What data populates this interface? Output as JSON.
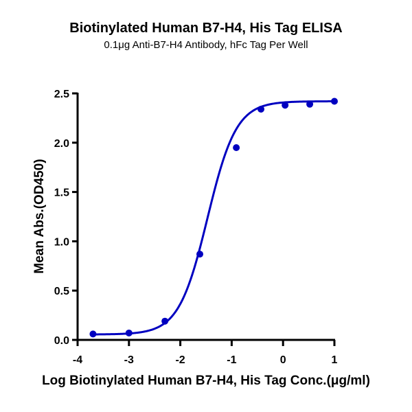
{
  "chart_data": {
    "type": "scatter",
    "title": "Biotinylated Human B7-H4, His Tag ELISA",
    "subtitle": "0.1μg Anti-B7-H4 Antibody, hFc Tag Per Well",
    "xlabel": "Log Biotinylated Human B7-H4, His Tag Conc.(μg/ml)",
    "ylabel": "Mean Abs.(OD450)",
    "xlim": [
      -4,
      1
    ],
    "ylim": [
      0,
      2.5
    ],
    "x_ticks": [
      -4,
      -3,
      -2,
      -1,
      0,
      1
    ],
    "y_ticks": [
      0.0,
      0.5,
      1.0,
      1.5,
      2.0,
      2.5
    ],
    "x_tick_labels": [
      "-4",
      "-3",
      "-2",
      "-1",
      "0",
      "1"
    ],
    "y_tick_labels": [
      "0.0",
      "0.5",
      "1.0",
      "1.5",
      "2.0",
      "2.5"
    ],
    "grid": false,
    "legend": null,
    "series": [
      {
        "name": "Biotinylated Human B7-H4, His Tag",
        "color": "#0000C0",
        "marker": "circle",
        "fit": "4PL sigmoid",
        "x": [
          -3.7,
          -3.0,
          -2.3,
          -1.62,
          -0.91,
          -0.43,
          0.04,
          0.52,
          1.0
        ],
        "y": [
          0.06,
          0.07,
          0.19,
          0.87,
          1.95,
          2.34,
          2.38,
          2.39,
          2.42
        ]
      }
    ],
    "fit_params": {
      "bottom": 0.055,
      "top": 2.42,
      "logEC50": -1.47,
      "hill": 1.55
    }
  }
}
